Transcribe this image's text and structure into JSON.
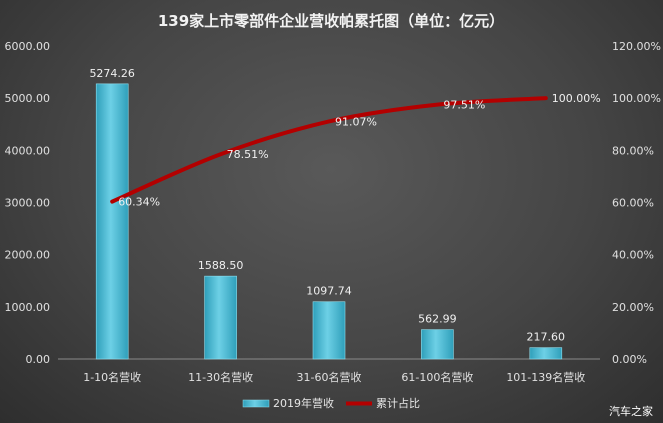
{
  "chart_data": {
    "type": "bar",
    "title": "139家上市零部件企业营收帕累托图（单位：亿元）",
    "categories": [
      "1-10名营收",
      "11-30名营收",
      "31-60名营收",
      "61-100名营收",
      "101-139名营收"
    ],
    "series": [
      {
        "name": "2019年营收",
        "type": "bar",
        "axis": "left",
        "values": [
          5274.26,
          1588.5,
          1097.74,
          562.99,
          217.6
        ],
        "labels": [
          "5274.26",
          "1588.50",
          "1097.74",
          "562.99",
          "217.60"
        ],
        "color": "#4bbcd6"
      },
      {
        "name": "累计占比",
        "type": "line",
        "axis": "right",
        "values": [
          60.34,
          78.51,
          91.07,
          97.51,
          100.0
        ],
        "labels": [
          "60.34%",
          "78.51%",
          "91.07%",
          "97.51%",
          "100.00%"
        ],
        "color": "#b30000"
      }
    ],
    "ylim_left": [
      0,
      6000
    ],
    "yticks_left": [
      "0.00",
      "1000.00",
      "2000.00",
      "3000.00",
      "4000.00",
      "5000.00",
      "6000.00"
    ],
    "ylim_right": [
      0,
      120
    ],
    "yticks_right": [
      "0.00%",
      "20.00%",
      "40.00%",
      "60.00%",
      "80.00%",
      "100.00%",
      "120.00%"
    ],
    "grid": false,
    "legend_position": "bottom"
  },
  "watermark": "汽车之家"
}
